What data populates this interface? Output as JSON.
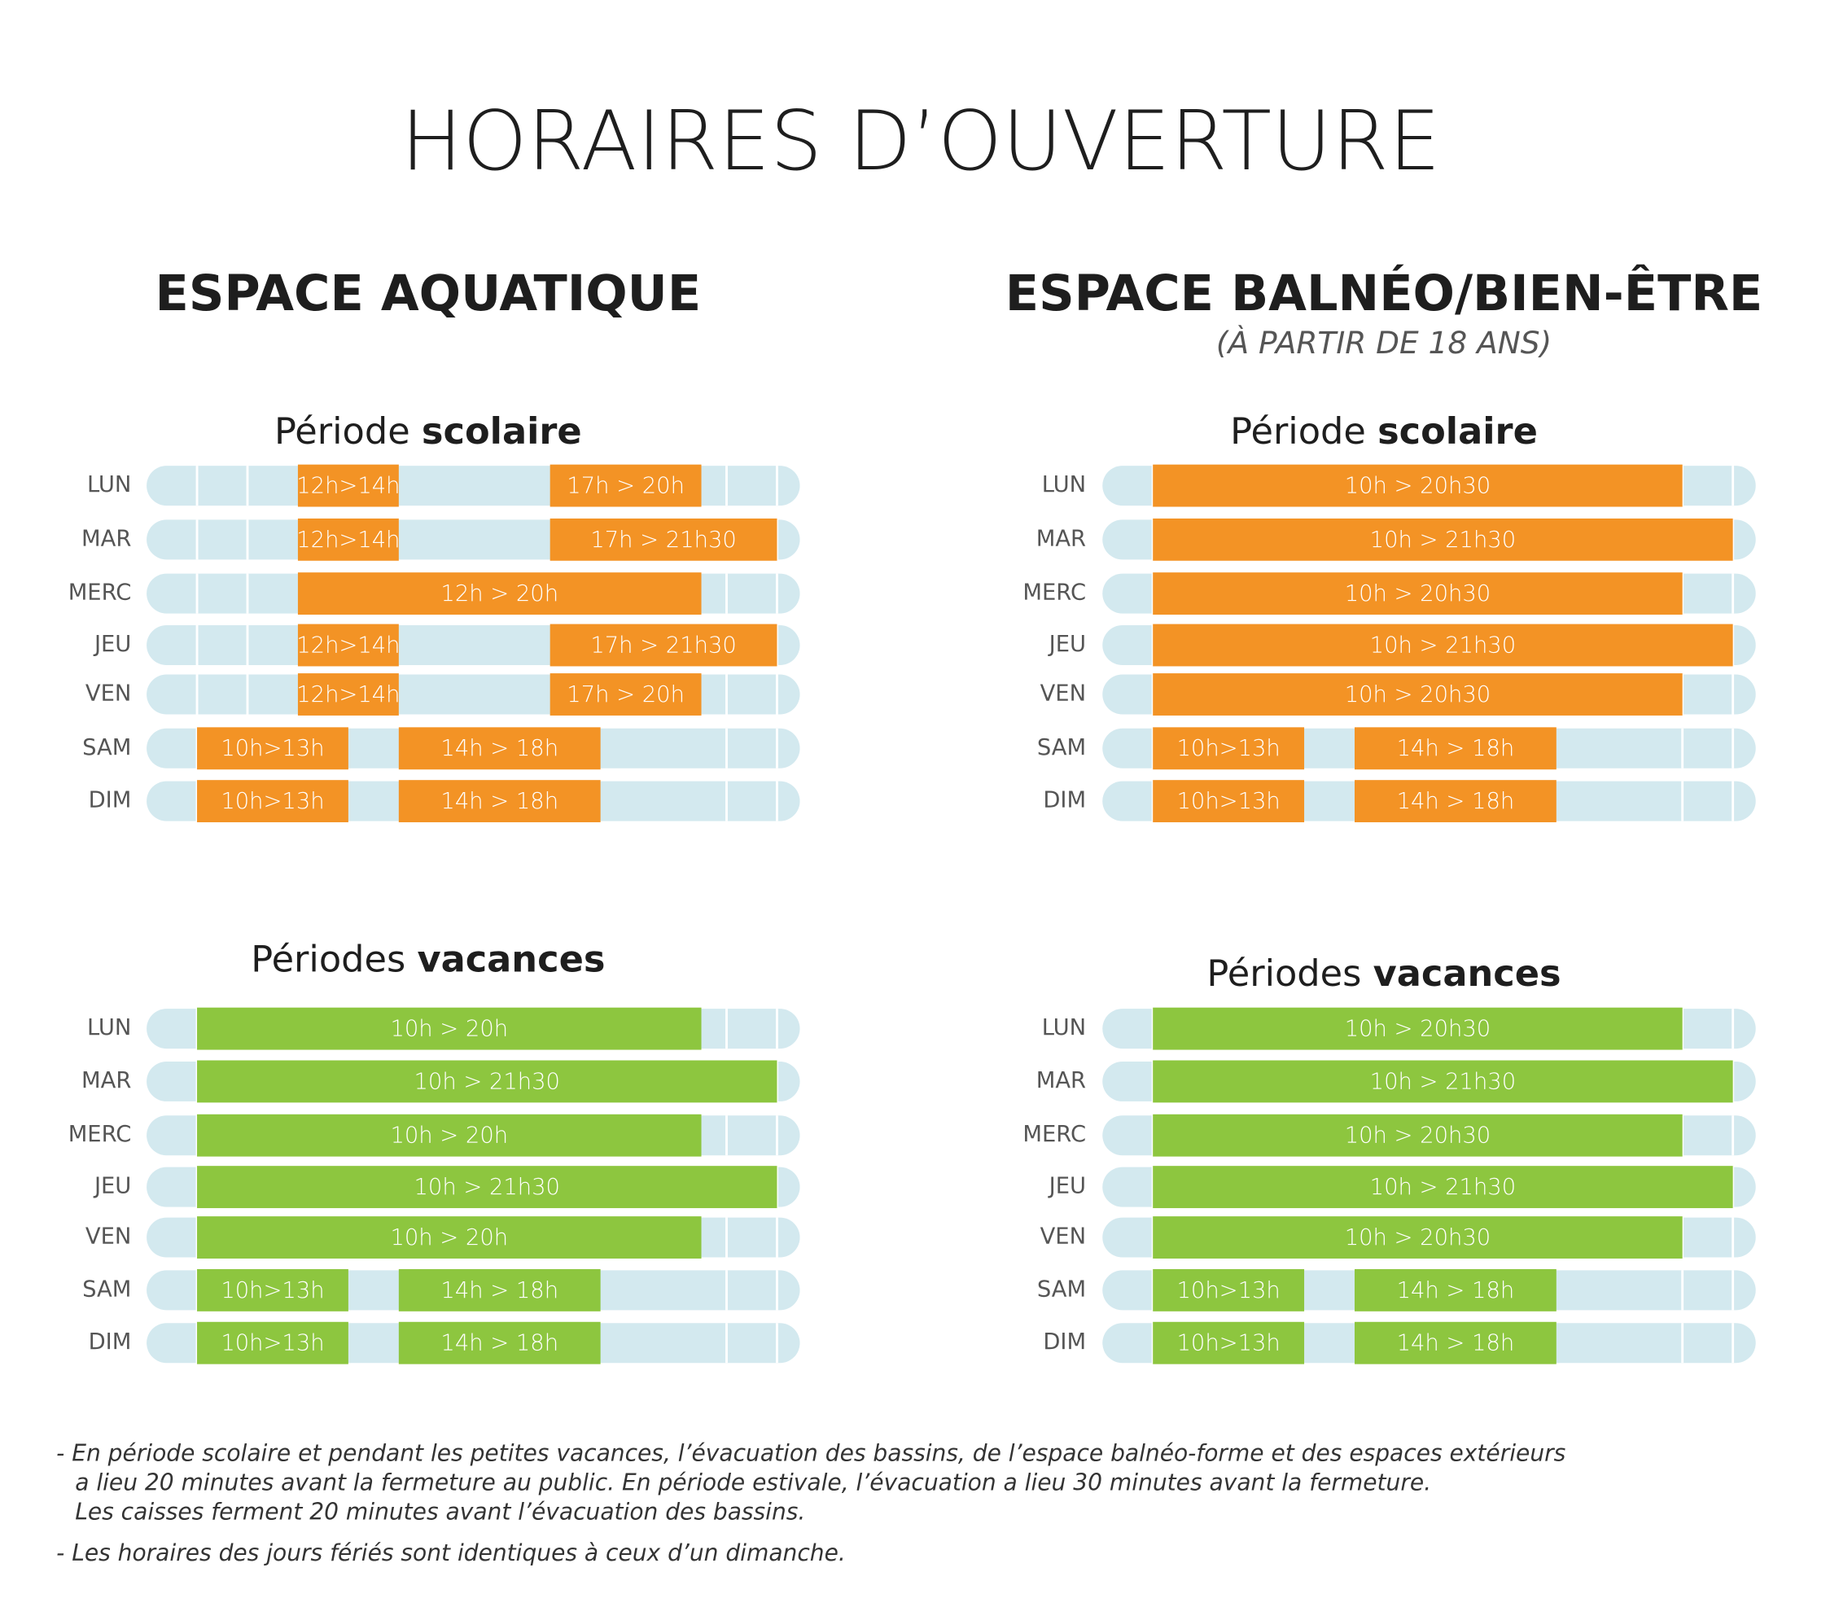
{
  "title": "HORAIRES D’OUVERTURE",
  "columns": [
    {
      "title": "ESPACE AQUATIQUE",
      "sections": [
        {
          "title": {
            "regular": "Période",
            "bold": "scolaire"
          },
          "color": "#f39325",
          "rows": [
            {
              "day": "LUN",
              "slots": [
                "12h>14h",
                "17h > 20h"
              ]
            },
            {
              "day": "MAR",
              "slots": [
                "12h>14h",
                "17h > 21h30"
              ]
            },
            {
              "day": "MERC",
              "slots": [
                "12h > 20h"
              ]
            },
            {
              "day": "JEU",
              "slots": [
                "12h>14h",
                "17h > 21h30"
              ]
            },
            {
              "day": "VEN",
              "slots": [
                "12h>14h",
                "17h > 20h"
              ]
            },
            {
              "day": "SAM",
              "slots": [
                "10h>13h",
                "14h > 18h"
              ]
            },
            {
              "day": "DIM",
              "slots": [
                "10h>13h",
                "14h > 18h"
              ]
            }
          ]
        },
        {
          "title": {
            "regular": "Périodes",
            "bold": "vacances"
          },
          "color": "#8dc63f",
          "rows": [
            {
              "day": "LUN",
              "slots": [
                "10h > 20h"
              ]
            },
            {
              "day": "MAR",
              "slots": [
                "10h > 21h30"
              ]
            },
            {
              "day": "MERC",
              "slots": [
                "10h > 20h"
              ]
            },
            {
              "day": "JEU",
              "slots": [
                "10h > 21h30"
              ]
            },
            {
              "day": "VEN",
              "slots": [
                "10h > 20h"
              ]
            },
            {
              "day": "SAM",
              "slots": [
                "10h>13h",
                "14h > 18h"
              ]
            },
            {
              "day": "DIM",
              "slots": [
                "10h>13h",
                "14h > 18h"
              ]
            }
          ]
        }
      ]
    },
    {
      "title": "ESPACE BALNÉO/BIEN-ÊTRE",
      "subtitle": "(À PARTIR DE 18 ANS)",
      "sections": [
        {
          "title": {
            "regular": "Période",
            "bold": "scolaire"
          },
          "color": "#f39325",
          "rows": [
            {
              "day": "LUN",
              "slots": [
                "10h > 20h30"
              ]
            },
            {
              "day": "MAR",
              "slots": [
                "10h > 21h30"
              ]
            },
            {
              "day": "MERC",
              "slots": [
                "10h > 20h30"
              ]
            },
            {
              "day": "JEU",
              "slots": [
                "10h > 21h30"
              ]
            },
            {
              "day": "VEN",
              "slots": [
                "10h > 20h30"
              ]
            },
            {
              "day": "SAM",
              "slots": [
                "10h>13h",
                "14h > 18h"
              ]
            },
            {
              "day": "DIM",
              "slots": [
                "10h>13h",
                "14h > 18h"
              ]
            }
          ]
        },
        {
          "title": {
            "regular": "Périodes",
            "bold": "vacances"
          },
          "color": "#8dc63f",
          "rows": [
            {
              "day": "LUN",
              "slots": [
                "10h > 20h30"
              ]
            },
            {
              "day": "MAR",
              "slots": [
                "10h > 21h30"
              ]
            },
            {
              "day": "MERC",
              "slots": [
                "10h > 20h30"
              ]
            },
            {
              "day": "JEU",
              "slots": [
                "10h > 21h30"
              ]
            },
            {
              "day": "VEN",
              "slots": [
                "10h > 20h30"
              ]
            },
            {
              "day": "SAM",
              "slots": [
                "10h>13h",
                "14h > 18h"
              ]
            },
            {
              "day": "DIM",
              "slots": [
                "10h>13h",
                "14h > 18h"
              ]
            }
          ]
        }
      ]
    }
  ],
  "notes": [
    [
      "- En période scolaire et pendant les petites vacances, l’évacuation des bassins, de l’espace balnéo-forme et des espaces extérieurs",
      "a lieu 20 minutes avant la fermeture au public. En période estivale, l’évacuation a lieu 30 minutes avant la fermeture.",
      "Les caisses ferment 20 minutes avant l’évacuation des bassins."
    ],
    [
      "- Les horaires des jours fériés sont identiques à ceux d’un dimanche."
    ]
  ]
}
